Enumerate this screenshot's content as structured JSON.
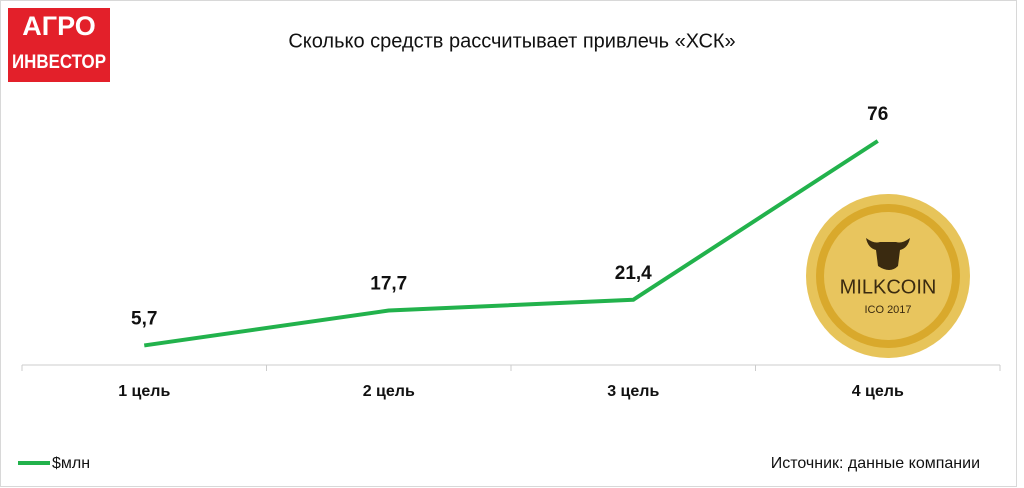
{
  "logo": {
    "line1": "АГРО",
    "line2": "ИНВЕСТОР"
  },
  "source": "Источник: данные компании",
  "coin": {
    "name": "MILKCOIN",
    "sub": "ICO 2017"
  },
  "chart_data": {
    "type": "line",
    "title": "Сколько средств рассчитывает привлечь «ХСК»",
    "categories": [
      "1 цель",
      "2 цель",
      "3 цель",
      "4 цель"
    ],
    "series": [
      {
        "name": "$млн",
        "color": "#22b24c",
        "values": [
          5.7,
          17.7,
          21.4,
          76
        ],
        "value_labels": [
          "5,7",
          "17,7",
          "21,4",
          "76"
        ]
      }
    ],
    "legend": "bottom-left"
  }
}
